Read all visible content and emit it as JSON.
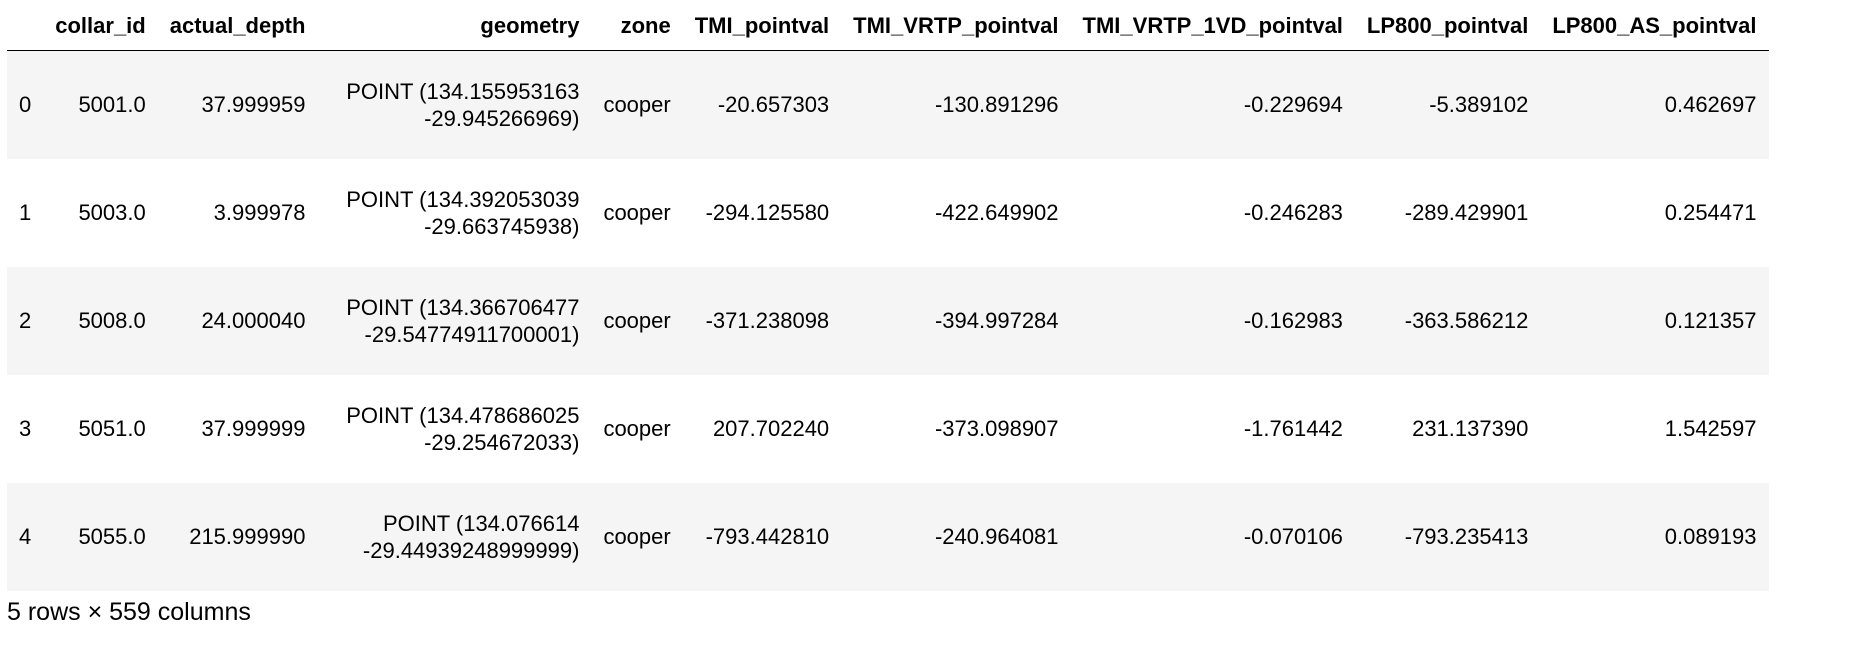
{
  "table": {
    "columns": [
      "",
      "collar_id",
      "actual_depth",
      "geometry",
      "zone",
      "TMI_pointval",
      "TMI_VRTP_pointval",
      "TMI_VRTP_1VD_pointval",
      "LP800_pointval",
      "LP800_AS_pointval"
    ],
    "rows": [
      {
        "index": "0",
        "collar_id": "5001.0",
        "actual_depth": "37.999959",
        "geometry": "POINT (134.155953163 -29.945266969)",
        "zone": "cooper",
        "TMI_pointval": "-20.657303",
        "TMI_VRTP_pointval": "-130.891296",
        "TMI_VRTP_1VD_pointval": "-0.229694",
        "LP800_pointval": "-5.389102",
        "LP800_AS_pointval": "0.462697"
      },
      {
        "index": "1",
        "collar_id": "5003.0",
        "actual_depth": "3.999978",
        "geometry": "POINT (134.392053039 -29.663745938)",
        "zone": "cooper",
        "TMI_pointval": "-294.125580",
        "TMI_VRTP_pointval": "-422.649902",
        "TMI_VRTP_1VD_pointval": "-0.246283",
        "LP800_pointval": "-289.429901",
        "LP800_AS_pointval": "0.254471"
      },
      {
        "index": "2",
        "collar_id": "5008.0",
        "actual_depth": "24.000040",
        "geometry": "POINT (134.366706477 -29.54774911700001)",
        "zone": "cooper",
        "TMI_pointval": "-371.238098",
        "TMI_VRTP_pointval": "-394.997284",
        "TMI_VRTP_1VD_pointval": "-0.162983",
        "LP800_pointval": "-363.586212",
        "LP800_AS_pointval": "0.121357"
      },
      {
        "index": "3",
        "collar_id": "5051.0",
        "actual_depth": "37.999999",
        "geometry": "POINT (134.478686025 -29.254672033)",
        "zone": "cooper",
        "TMI_pointval": "207.702240",
        "TMI_VRTP_pointval": "-373.098907",
        "TMI_VRTP_1VD_pointval": "-1.761442",
        "LP800_pointval": "231.137390",
        "LP800_AS_pointval": "1.542597"
      },
      {
        "index": "4",
        "collar_id": "5055.0",
        "actual_depth": "215.999990",
        "geometry": "POINT (134.076614 -29.44939248999999)",
        "zone": "cooper",
        "TMI_pointval": "-793.442810",
        "TMI_VRTP_pointval": "-240.964081",
        "TMI_VRTP_1VD_pointval": "-0.070106",
        "LP800_pointval": "-793.235413",
        "LP800_AS_pointval": "0.089193"
      }
    ]
  },
  "footer": {
    "shape_text": "5 rows × 559 columns"
  }
}
